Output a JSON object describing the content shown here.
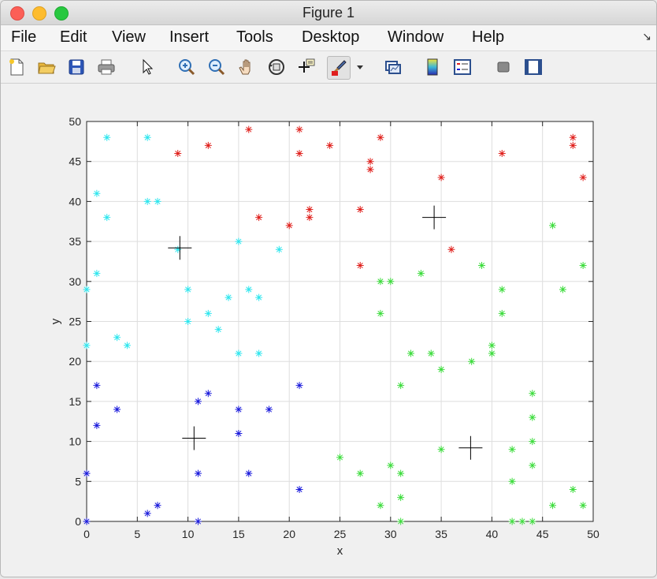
{
  "window": {
    "title": "Figure 1"
  },
  "menu": {
    "items": [
      "File",
      "Edit",
      "View",
      "Insert",
      "Tools",
      "Desktop",
      "Window",
      "Help"
    ],
    "corner_arrow": "↘"
  },
  "toolbar": {
    "icons": [
      "new-figure-icon",
      "open-file-icon",
      "save-icon",
      "print-icon",
      "pointer-icon",
      "zoom-in-icon",
      "zoom-out-icon",
      "pan-hand-icon",
      "rotate-3d-icon",
      "data-cursor-icon",
      "brush-icon",
      "brush-dropdown-icon",
      "link-plot-icon",
      "colorbar-icon",
      "legend-icon",
      "hide-plot-tools-icon",
      "show-plot-tools-icon"
    ]
  },
  "colors": {
    "red": "#e0201c",
    "cyan": "#2ee6ee",
    "green": "#3cdc3c",
    "blue": "#1a1adc",
    "black": "#000000"
  },
  "chart_data": {
    "type": "scatter",
    "title": "",
    "xlabel": "x",
    "ylabel": "y",
    "xlim": [
      0,
      50
    ],
    "ylim": [
      0,
      50
    ],
    "xticks": [
      "0",
      "5",
      "10",
      "15",
      "20",
      "25",
      "30",
      "35",
      "40",
      "45",
      "50"
    ],
    "yticks": [
      "0",
      "5",
      "10",
      "15",
      "20",
      "25",
      "30",
      "35",
      "40",
      "45",
      "50"
    ],
    "grid": true,
    "series": [
      {
        "color": "red",
        "marker": "asterisk",
        "points": [
          [
            9,
            46
          ],
          [
            12,
            47
          ],
          [
            16,
            49
          ],
          [
            17,
            38
          ],
          [
            20,
            37
          ],
          [
            21,
            49
          ],
          [
            21,
            46
          ],
          [
            22,
            39
          ],
          [
            22,
            38
          ],
          [
            24,
            47
          ],
          [
            27,
            39
          ],
          [
            27,
            32
          ],
          [
            28,
            45
          ],
          [
            28,
            44
          ],
          [
            29,
            48
          ],
          [
            35,
            43
          ],
          [
            36,
            34
          ],
          [
            41,
            46
          ],
          [
            48,
            48
          ],
          [
            48,
            47
          ],
          [
            49,
            43
          ]
        ]
      },
      {
        "color": "cyan",
        "marker": "asterisk",
        "points": [
          [
            0,
            29
          ],
          [
            0,
            22
          ],
          [
            1,
            41
          ],
          [
            1,
            31
          ],
          [
            2,
            48
          ],
          [
            2,
            38
          ],
          [
            3,
            23
          ],
          [
            4,
            22
          ],
          [
            6,
            48
          ],
          [
            6,
            40
          ],
          [
            7,
            40
          ],
          [
            9,
            34
          ],
          [
            10,
            29
          ],
          [
            10,
            25
          ],
          [
            12,
            26
          ],
          [
            13,
            24
          ],
          [
            14,
            28
          ],
          [
            15,
            35
          ],
          [
            15,
            21
          ],
          [
            16,
            29
          ],
          [
            17,
            28
          ],
          [
            17,
            21
          ],
          [
            19,
            34
          ]
        ]
      },
      {
        "color": "green",
        "marker": "asterisk",
        "points": [
          [
            25,
            8
          ],
          [
            27,
            6
          ],
          [
            29,
            30
          ],
          [
            29,
            26
          ],
          [
            29,
            2
          ],
          [
            30,
            30
          ],
          [
            30,
            7
          ],
          [
            31,
            17
          ],
          [
            31,
            6
          ],
          [
            31,
            3
          ],
          [
            31,
            0
          ],
          [
            32,
            21
          ],
          [
            33,
            31
          ],
          [
            34,
            21
          ],
          [
            35,
            19
          ],
          [
            35,
            9
          ],
          [
            38,
            20
          ],
          [
            39,
            32
          ],
          [
            40,
            22
          ],
          [
            40,
            21
          ],
          [
            41,
            29
          ],
          [
            41,
            26
          ],
          [
            42,
            9
          ],
          [
            42,
            5
          ],
          [
            42,
            0
          ],
          [
            43,
            0
          ],
          [
            44,
            16
          ],
          [
            44,
            13
          ],
          [
            44,
            10
          ],
          [
            44,
            7
          ],
          [
            44,
            0
          ],
          [
            46,
            37
          ],
          [
            46,
            2
          ],
          [
            47,
            29
          ],
          [
            48,
            4
          ],
          [
            49,
            32
          ],
          [
            49,
            2
          ]
        ]
      },
      {
        "color": "blue",
        "marker": "asterisk",
        "points": [
          [
            0,
            6
          ],
          [
            0,
            0
          ],
          [
            1,
            17
          ],
          [
            1,
            12
          ],
          [
            3,
            14
          ],
          [
            6,
            1
          ],
          [
            7,
            2
          ],
          [
            11,
            15
          ],
          [
            11,
            6
          ],
          [
            11,
            0
          ],
          [
            12,
            16
          ],
          [
            15,
            14
          ],
          [
            15,
            11
          ],
          [
            16,
            6
          ],
          [
            18,
            14
          ],
          [
            21,
            17
          ],
          [
            21,
            4
          ]
        ]
      },
      {
        "color": "black",
        "marker": "plus",
        "points": [
          [
            9.2,
            34.2
          ],
          [
            10.6,
            10.4
          ],
          [
            34.3,
            38
          ],
          [
            37.9,
            9.2
          ]
        ]
      }
    ]
  }
}
